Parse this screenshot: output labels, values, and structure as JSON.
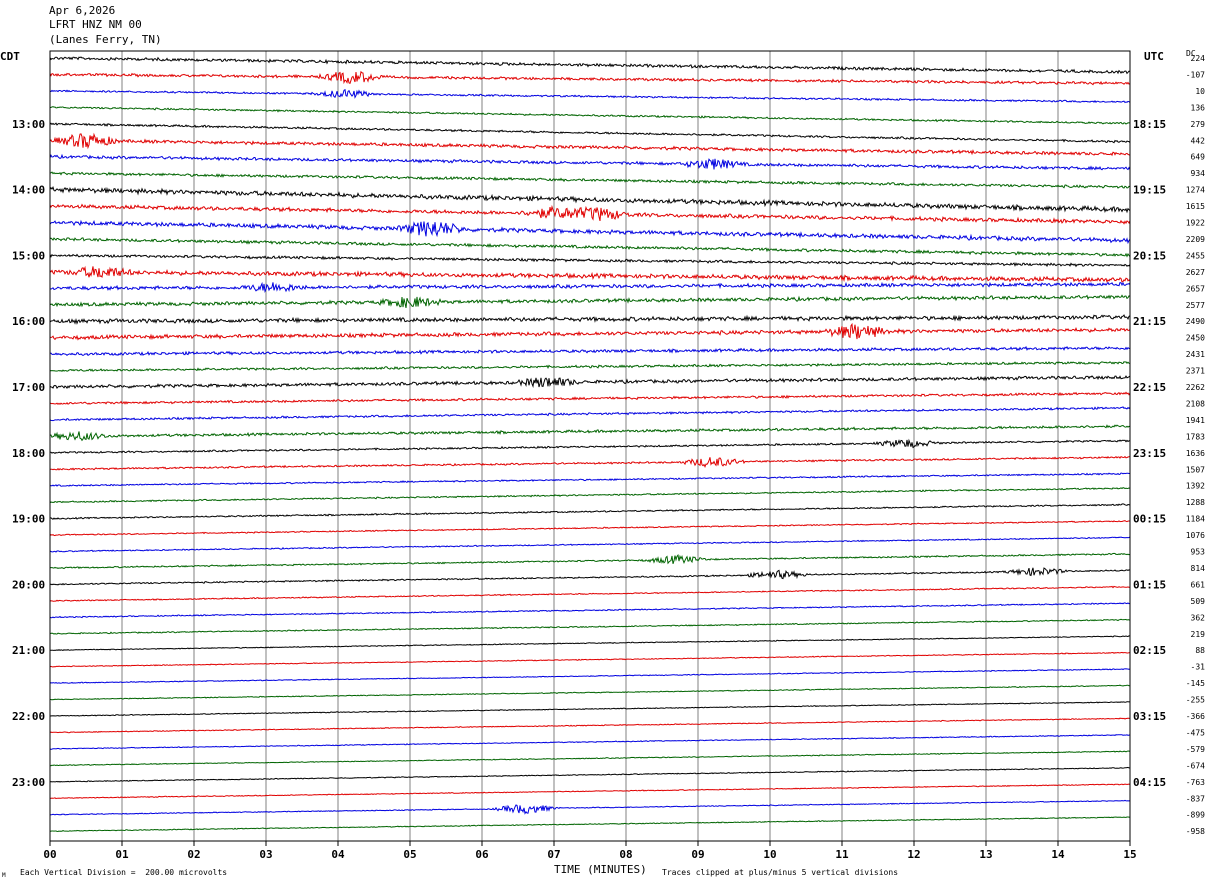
{
  "header": {
    "date": "Apr 6,2026",
    "station": "LFRT HNZ NM 00",
    "location": "(Lanes Ferry, TN)"
  },
  "left_zone": "CDT",
  "right_zone": "UTC",
  "dc_label": "DC",
  "footer": {
    "left_note": "Each Vertical Division =  200.00 microvolts",
    "x_title": "TIME (MINUTES)",
    "right_note": "Traces clipped at plus/minus 5 vertical divisions",
    "corner": "M"
  },
  "colors": {
    "cycle": [
      "#000000",
      "#e00000",
      "#0000e0",
      "#006400"
    ],
    "grid": "#808080"
  },
  "chart_data": {
    "type": "line",
    "xlabel": "TIME (MINUTES)",
    "xlim": [
      0,
      15
    ],
    "x_ticks": [
      "00",
      "01",
      "02",
      "03",
      "04",
      "05",
      "06",
      "07",
      "08",
      "09",
      "10",
      "11",
      "12",
      "13",
      "14",
      "15"
    ],
    "left_hour_labels": [
      "13:00",
      "14:00",
      "15:00",
      "16:00",
      "17:00",
      "18:00",
      "19:00",
      "20:00",
      "21:00",
      "22:00",
      "23:00"
    ],
    "right_hour_labels": [
      "18:15",
      "19:15",
      "20:15",
      "21:15",
      "22:15",
      "23:15",
      "00:15",
      "01:15",
      "02:15",
      "03:15",
      "04:15"
    ],
    "dc_offsets": [
      "224",
      "-107",
      "10",
      "136",
      "279",
      "442",
      "649",
      "934",
      "1274",
      "1615",
      "1922",
      "2209",
      "2455",
      "2627",
      "2657",
      "2577",
      "2490",
      "2450",
      "2431",
      "2371",
      "2262",
      "2108",
      "1941",
      "1783",
      "1636",
      "1507",
      "1392",
      "1288",
      "1184",
      "1076",
      "953",
      "814",
      "661",
      "509",
      "362",
      "219",
      "88",
      "-31",
      "-145",
      "-255",
      "-366",
      "-475",
      "-579",
      "-674",
      "-763",
      "-837",
      "-899",
      "-958"
    ],
    "trace_count": 48,
    "minutes_per_trace": 15,
    "vertical_division_microvolts": 200,
    "clip_divisions": 5,
    "activity": [
      1.0,
      0.9,
      0.6,
      0.6,
      0.7,
      1.1,
      1.0,
      0.9,
      1.6,
      1.3,
      1.4,
      1.0,
      0.9,
      1.5,
      1.2,
      1.2,
      1.4,
      1.3,
      1.0,
      0.8,
      1.1,
      0.8,
      0.7,
      0.9,
      0.6,
      0.6,
      0.5,
      0.5,
      0.5,
      0.4,
      0.4,
      0.5,
      0.5,
      0.4,
      0.4,
      0.4,
      0.3,
      0.3,
      0.3,
      0.3,
      0.3,
      0.3,
      0.3,
      0.3,
      0.3,
      0.3,
      0.3,
      0.3
    ],
    "drift": [
      14,
      9,
      11,
      16,
      18,
      14,
      12,
      14,
      20,
      16,
      18,
      16,
      10,
      8,
      -4,
      -8,
      -4,
      -8,
      -6,
      -8,
      -10,
      -10,
      -12,
      -10,
      -12,
      -12,
      -12,
      -14,
      -14,
      -14,
      -14,
      -14,
      -14,
      -14,
      -14,
      -14,
      -14,
      -14,
      -14,
      -14,
      -14,
      -14,
      -14,
      -14,
      -14,
      -14,
      -14,
      -14
    ],
    "events": [
      {
        "trace": 1,
        "minute": 4.2,
        "amp": 6
      },
      {
        "trace": 2,
        "minute": 4.1,
        "amp": 4
      },
      {
        "trace": 5,
        "minute": 0.5,
        "amp": 7
      },
      {
        "trace": 6,
        "minute": 9.2,
        "amp": 5
      },
      {
        "trace": 10,
        "minute": 5.3,
        "amp": 8
      },
      {
        "trace": 9,
        "minute": 7.0,
        "amp": 5
      },
      {
        "trace": 9,
        "minute": 7.6,
        "amp": 6
      },
      {
        "trace": 13,
        "minute": 0.7,
        "amp": 5
      },
      {
        "trace": 14,
        "minute": 3.1,
        "amp": 4
      },
      {
        "trace": 15,
        "minute": 5.0,
        "amp": 5
      },
      {
        "trace": 17,
        "minute": 11.2,
        "amp": 7
      },
      {
        "trace": 20,
        "minute": 6.9,
        "amp": 5
      },
      {
        "trace": 23,
        "minute": 0.4,
        "amp": 4
      },
      {
        "trace": 24,
        "minute": 11.9,
        "amp": 4
      },
      {
        "trace": 25,
        "minute": 9.2,
        "amp": 5
      },
      {
        "trace": 31,
        "minute": 8.7,
        "amp": 4
      },
      {
        "trace": 32,
        "minute": 10.1,
        "amp": 4
      },
      {
        "trace": 32,
        "minute": 13.7,
        "amp": 4
      },
      {
        "trace": 46,
        "minute": 6.6,
        "amp": 5
      }
    ]
  }
}
